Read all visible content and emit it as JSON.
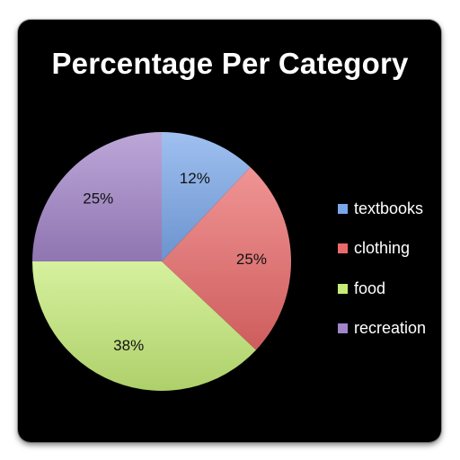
{
  "chart_data": {
    "type": "pie",
    "title": "Percentage Per Category",
    "categories": [
      "textbooks",
      "clothing",
      "food",
      "recreation"
    ],
    "values": [
      12,
      25,
      38,
      25
    ],
    "labels": [
      "12%",
      "25%",
      "38%",
      "25%"
    ],
    "colors": [
      "#7aa7ea",
      "#ea6a6a",
      "#c6ec78",
      "#a285c9"
    ],
    "legend_position": "right"
  }
}
